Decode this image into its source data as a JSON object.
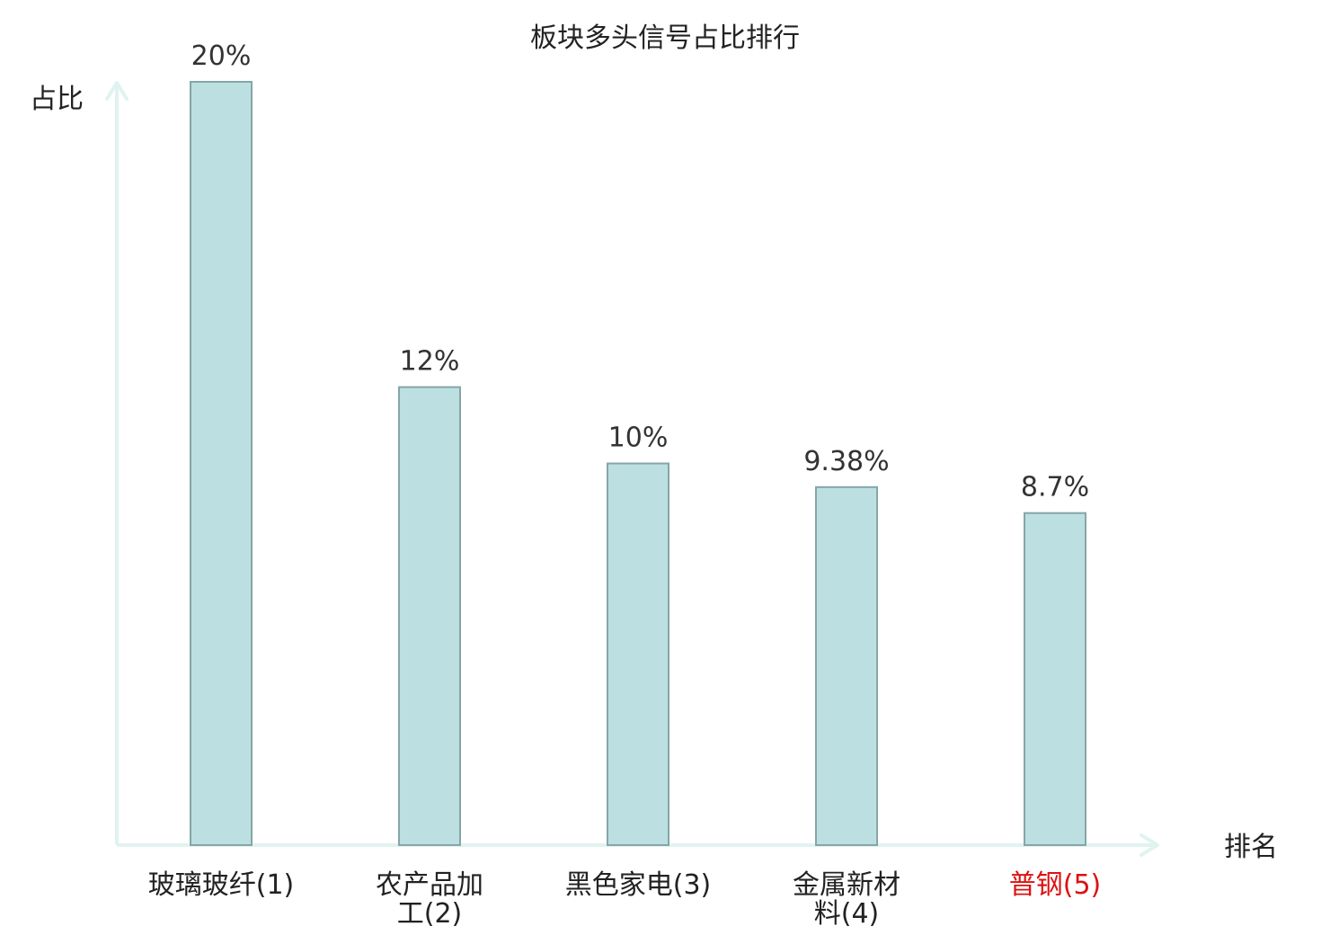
{
  "chart_data": {
    "type": "bar",
    "title": "板块多头信号占比排行",
    "ylabel": "占比",
    "xlabel": "排名",
    "categories": [
      {
        "lines": [
          "玻璃玻纤",
          "(1)"
        ],
        "color": "#222222",
        "inline": true
      },
      {
        "lines": [
          "农产品加",
          "工(2)"
        ],
        "color": "#222222",
        "inline": false
      },
      {
        "lines": [
          "黑色家电",
          "(3)"
        ],
        "color": "#222222",
        "inline": true
      },
      {
        "lines": [
          "金属新材",
          "料(4)"
        ],
        "color": "#222222",
        "inline": false
      },
      {
        "lines": [
          "普钢",
          "(5)"
        ],
        "color": "#dd1111",
        "inline": true
      }
    ],
    "values": [
      20,
      12,
      10,
      9.38,
      8.7
    ],
    "value_labels": [
      "20%",
      "12%",
      "10%",
      "9.38%",
      "8.7%"
    ],
    "ylim": [
      0,
      20
    ],
    "grid": false,
    "legend": "none",
    "colors": {
      "bar_fill": "#bce0e1",
      "bar_stroke": "#86a5a6",
      "axis": "#e0f3f1",
      "highlight": "#dd1111"
    }
  }
}
